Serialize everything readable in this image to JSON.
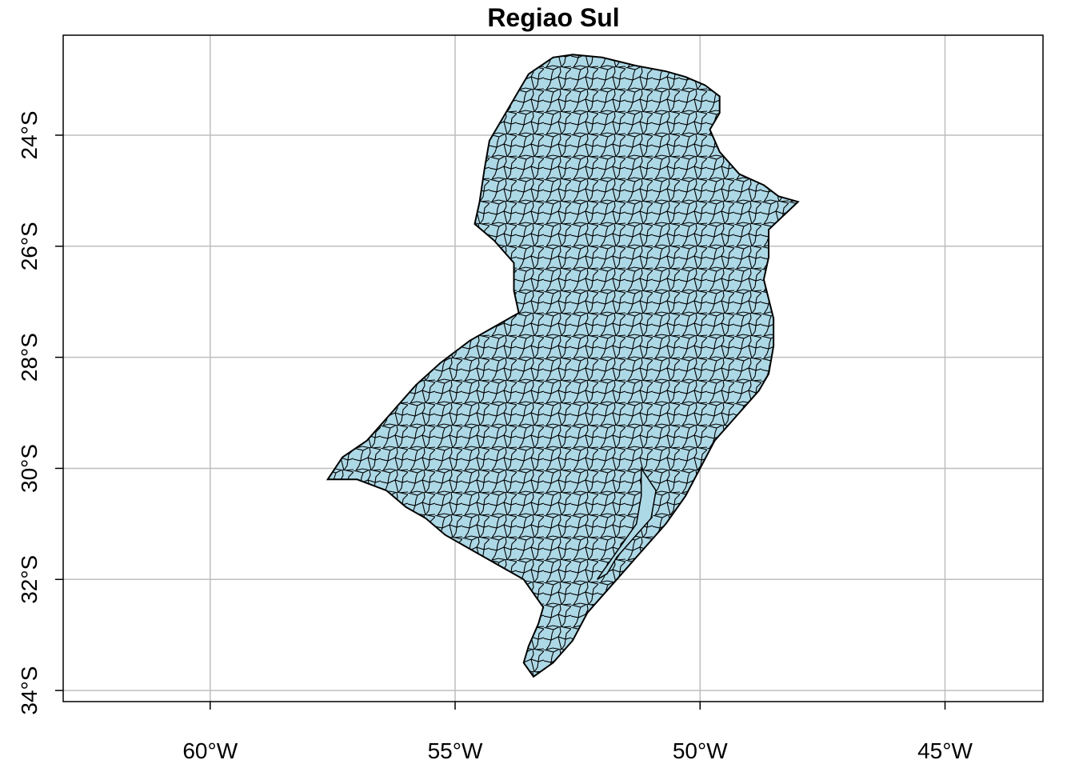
{
  "title": "Regiao Sul",
  "colors": {
    "region_fill": "#add8e6",
    "border": "#000000",
    "grid": "#bebebe",
    "background": "#ffffff"
  },
  "chart_data": {
    "type": "map",
    "title": "Regiao Sul",
    "xlim": [
      -63.0,
      -43.0
    ],
    "ylim": [
      -34.2,
      -22.2
    ],
    "x_ticks": [
      {
        "value": -60,
        "label": "60°W"
      },
      {
        "value": -55,
        "label": "55°W"
      },
      {
        "value": -50,
        "label": "50°W"
      },
      {
        "value": -45,
        "label": "45°W"
      }
    ],
    "y_ticks": [
      {
        "value": -24,
        "label": "24°S"
      },
      {
        "value": -26,
        "label": "26°S"
      },
      {
        "value": -28,
        "label": "28°S"
      },
      {
        "value": -30,
        "label": "30°S"
      },
      {
        "value": -32,
        "label": "32°S"
      },
      {
        "value": -34,
        "label": "34°S"
      }
    ],
    "grid": true,
    "region_outline": [
      [
        -53.5,
        -22.9
      ],
      [
        -53.0,
        -22.6
      ],
      [
        -52.6,
        -22.55
      ],
      [
        -52.0,
        -22.6
      ],
      [
        -51.3,
        -22.75
      ],
      [
        -50.7,
        -22.85
      ],
      [
        -50.3,
        -22.95
      ],
      [
        -49.9,
        -23.1
      ],
      [
        -49.6,
        -23.3
      ],
      [
        -49.6,
        -23.6
      ],
      [
        -49.8,
        -23.9
      ],
      [
        -49.6,
        -24.3
      ],
      [
        -49.2,
        -24.7
      ],
      [
        -48.7,
        -24.9
      ],
      [
        -48.4,
        -25.1
      ],
      [
        -48.0,
        -25.2
      ],
      [
        -48.6,
        -25.7
      ],
      [
        -48.6,
        -26.2
      ],
      [
        -48.7,
        -26.6
      ],
      [
        -48.5,
        -27.3
      ],
      [
        -48.5,
        -27.8
      ],
      [
        -48.6,
        -28.3
      ],
      [
        -48.8,
        -28.6
      ],
      [
        -49.3,
        -29.1
      ],
      [
        -49.7,
        -29.5
      ],
      [
        -50.0,
        -30.0
      ],
      [
        -50.3,
        -30.5
      ],
      [
        -50.7,
        -31.0
      ],
      [
        -51.3,
        -31.6
      ],
      [
        -51.9,
        -32.2
      ],
      [
        -52.3,
        -32.6
      ],
      [
        -52.6,
        -33.1
      ],
      [
        -53.0,
        -33.5
      ],
      [
        -53.4,
        -33.75
      ],
      [
        -53.6,
        -33.5
      ],
      [
        -53.5,
        -33.2
      ],
      [
        -53.3,
        -32.8
      ],
      [
        -53.2,
        -32.5
      ],
      [
        -53.6,
        -32.0
      ],
      [
        -54.2,
        -31.7
      ],
      [
        -54.6,
        -31.5
      ],
      [
        -55.2,
        -31.2
      ],
      [
        -55.6,
        -30.9
      ],
      [
        -56.0,
        -30.7
      ],
      [
        -56.4,
        -30.4
      ],
      [
        -57.0,
        -30.2
      ],
      [
        -57.6,
        -30.2
      ],
      [
        -57.3,
        -29.8
      ],
      [
        -56.8,
        -29.5
      ],
      [
        -56.3,
        -29.0
      ],
      [
        -55.8,
        -28.5
      ],
      [
        -55.3,
        -28.1
      ],
      [
        -54.7,
        -27.7
      ],
      [
        -54.1,
        -27.4
      ],
      [
        -53.7,
        -27.2
      ],
      [
        -53.8,
        -26.8
      ],
      [
        -53.8,
        -26.3
      ],
      [
        -54.2,
        -25.9
      ],
      [
        -54.6,
        -25.6
      ],
      [
        -54.5,
        -25.2
      ],
      [
        -54.4,
        -24.6
      ],
      [
        -54.3,
        -24.1
      ],
      [
        -54.1,
        -23.8
      ],
      [
        -53.9,
        -23.5
      ],
      [
        -53.7,
        -23.2
      ]
    ],
    "lagoon_outline": [
      [
        -51.2,
        -30.0
      ],
      [
        -50.9,
        -30.4
      ],
      [
        -51.0,
        -30.9
      ],
      [
        -51.3,
        -31.2
      ],
      [
        -51.7,
        -31.6
      ],
      [
        -51.9,
        -31.9
      ],
      [
        -52.1,
        -32.0
      ],
      [
        -51.7,
        -31.5
      ],
      [
        -51.3,
        -31.0
      ],
      [
        -51.2,
        -30.5
      ]
    ]
  }
}
